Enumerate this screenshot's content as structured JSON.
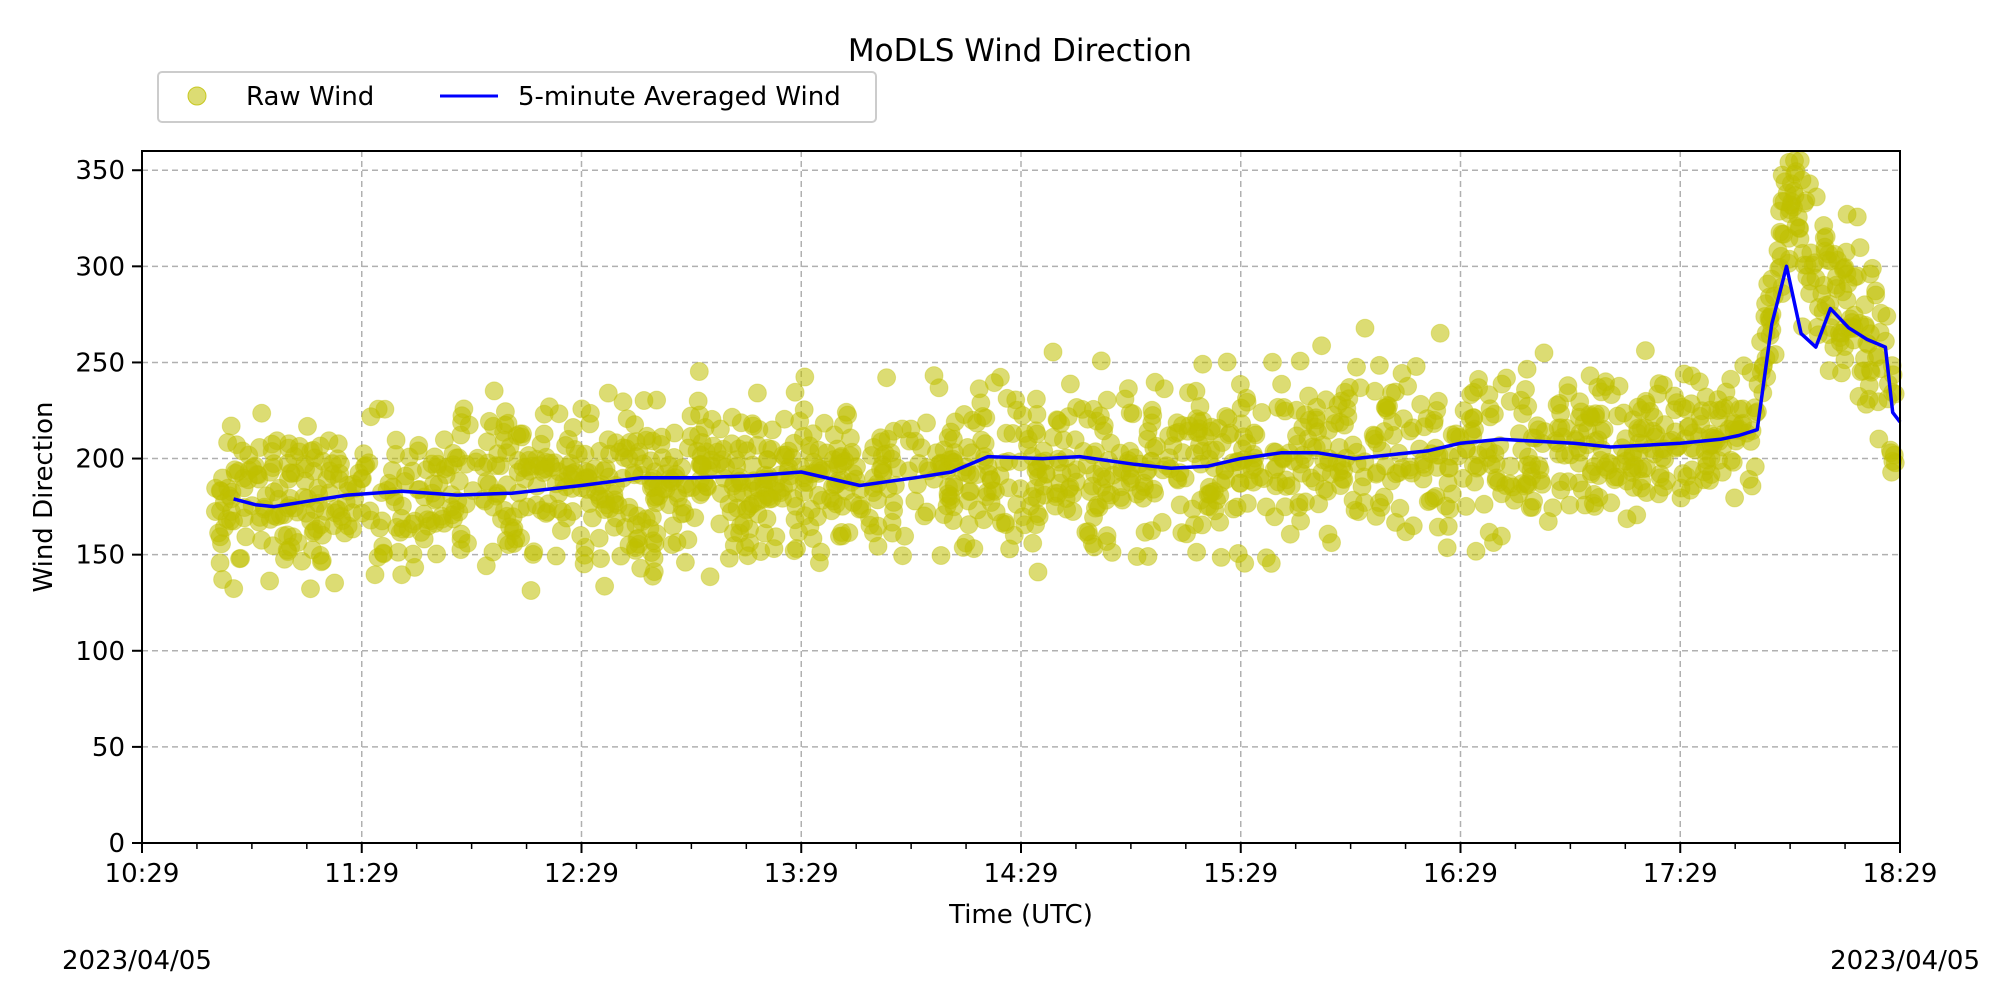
{
  "chart_data": {
    "type": "scatter",
    "title": "MoDLS Wind Direction",
    "xlabel": "Time (UTC)",
    "ylabel": "Wind Direction",
    "x_ticks": [
      "10:29",
      "11:29",
      "12:29",
      "13:29",
      "14:29",
      "15:29",
      "16:29",
      "17:29",
      "18:29"
    ],
    "y_ticks": [
      "0",
      "50",
      "100",
      "150",
      "200",
      "250",
      "300",
      "350"
    ],
    "xlim": [
      "10:29",
      "18:29"
    ],
    "ylim": [
      0,
      360
    ],
    "grid": true,
    "legend_placement": "top-left",
    "date_left": "2023/04/05",
    "date_right": "2023/04/05",
    "series": [
      {
        "name": "Raw Wind",
        "kind": "scatter",
        "color": "#bfbf00",
        "alpha": 0.55,
        "x": [
          "10:49",
          "11:29",
          "12:29",
          "13:29",
          "14:29",
          "15:29",
          "16:29",
          "17:29",
          "17:49",
          "17:59",
          "18:09",
          "18:19",
          "18:28"
        ],
        "y": [
          175,
          180,
          185,
          190,
          192,
          200,
          205,
          212,
          220,
          340,
          290,
          265,
          220
        ],
        "spread": [
          18,
          22,
          20,
          20,
          22,
          25,
          22,
          18,
          15,
          20,
          25,
          25,
          25
        ]
      },
      {
        "name": "5-minute Averaged Wind",
        "kind": "line",
        "color": "#0000ff",
        "x": [
          "10:54",
          "11:00",
          "11:05",
          "11:15",
          "11:25",
          "11:40",
          "11:55",
          "12:10",
          "12:29",
          "12:45",
          "13:00",
          "13:15",
          "13:29",
          "13:45",
          "14:00",
          "14:10",
          "14:20",
          "14:35",
          "14:45",
          "15:00",
          "15:10",
          "15:20",
          "15:29",
          "15:40",
          "15:50",
          "16:00",
          "16:10",
          "16:20",
          "16:29",
          "16:40",
          "16:50",
          "17:00",
          "17:10",
          "17:20",
          "17:29",
          "17:40",
          "17:45",
          "17:50",
          "17:54",
          "17:58",
          "18:02",
          "18:06",
          "18:10",
          "18:15",
          "18:20",
          "18:25",
          "18:27",
          "18:29"
        ],
        "y": [
          179,
          176,
          175,
          178,
          181,
          183,
          181,
          182,
          186,
          190,
          190,
          191,
          193,
          186,
          190,
          193,
          201,
          200,
          201,
          197,
          195,
          196,
          200,
          203,
          203,
          200,
          202,
          204,
          208,
          210,
          209,
          208,
          206,
          207,
          208,
          210,
          212,
          215,
          270,
          300,
          265,
          258,
          278,
          268,
          262,
          258,
          224,
          219
        ]
      }
    ]
  }
}
